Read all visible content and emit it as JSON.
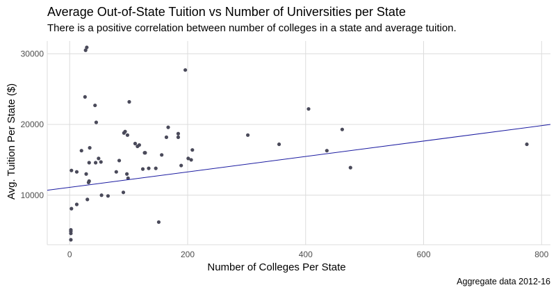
{
  "chart_data": {
    "type": "scatter",
    "title": "Average Out-of-State Tuition vs Number of Universities per State",
    "subtitle": "There is a positive correlation between number of colleges in a state and average tuition.",
    "caption": "Aggregate data 2012-16",
    "xlabel": "Number of Colleges Per State",
    "ylabel": "Avg. Tuition Per State ($)",
    "xlim": [
      -38,
      815
    ],
    "ylim": [
      3000,
      31800
    ],
    "xticks": [
      0,
      200,
      400,
      600,
      800
    ],
    "yticks": [
      10000,
      20000,
      30000
    ],
    "xtick_labels": [
      "0",
      "200",
      "400",
      "600",
      "800"
    ],
    "ytick_labels": [
      "10000",
      "20000",
      "30000"
    ],
    "grid": true,
    "point_color": "#4a4a5a",
    "trend_color": "#1a1aa0",
    "trend_line": {
      "x": [
        -38,
        815
      ],
      "y": [
        10700,
        20000
      ]
    },
    "points": [
      {
        "x": 2,
        "y": 3700
      },
      {
        "x": 2,
        "y": 4600
      },
      {
        "x": 2,
        "y": 4900
      },
      {
        "x": 2,
        "y": 5100
      },
      {
        "x": 3,
        "y": 8100
      },
      {
        "x": 3,
        "y": 13500
      },
      {
        "x": 12,
        "y": 8700
      },
      {
        "x": 12,
        "y": 13300
      },
      {
        "x": 20,
        "y": 16300
      },
      {
        "x": 26,
        "y": 23900
      },
      {
        "x": 27,
        "y": 30500
      },
      {
        "x": 29,
        "y": 30900
      },
      {
        "x": 28,
        "y": 13000
      },
      {
        "x": 30,
        "y": 9400
      },
      {
        "x": 32,
        "y": 11800
      },
      {
        "x": 33,
        "y": 12000
      },
      {
        "x": 33,
        "y": 14600
      },
      {
        "x": 34,
        "y": 16700
      },
      {
        "x": 43,
        "y": 22700
      },
      {
        "x": 44,
        "y": 14600
      },
      {
        "x": 45,
        "y": 20300
      },
      {
        "x": 49,
        "y": 15200
      },
      {
        "x": 53,
        "y": 14700
      },
      {
        "x": 54,
        "y": 10000
      },
      {
        "x": 65,
        "y": 9900
      },
      {
        "x": 79,
        "y": 13300
      },
      {
        "x": 84,
        "y": 14900
      },
      {
        "x": 91,
        "y": 10400
      },
      {
        "x": 92,
        "y": 18800
      },
      {
        "x": 94,
        "y": 19000
      },
      {
        "x": 97,
        "y": 13000
      },
      {
        "x": 98,
        "y": 18500
      },
      {
        "x": 99,
        "y": 12400
      },
      {
        "x": 101,
        "y": 23200
      },
      {
        "x": 111,
        "y": 17300
      },
      {
        "x": 115,
        "y": 16900
      },
      {
        "x": 118,
        "y": 17100
      },
      {
        "x": 124,
        "y": 13700
      },
      {
        "x": 127,
        "y": 16000
      },
      {
        "x": 128,
        "y": 16000
      },
      {
        "x": 134,
        "y": 13800
      },
      {
        "x": 146,
        "y": 13800
      },
      {
        "x": 151,
        "y": 6200
      },
      {
        "x": 156,
        "y": 15700
      },
      {
        "x": 164,
        "y": 18200
      },
      {
        "x": 167,
        "y": 19600
      },
      {
        "x": 184,
        "y": 18200
      },
      {
        "x": 184,
        "y": 18700
      },
      {
        "x": 189,
        "y": 14200
      },
      {
        "x": 196,
        "y": 27700
      },
      {
        "x": 201,
        "y": 15200
      },
      {
        "x": 206,
        "y": 15000
      },
      {
        "x": 208,
        "y": 16400
      },
      {
        "x": 302,
        "y": 18500
      },
      {
        "x": 355,
        "y": 17200
      },
      {
        "x": 405,
        "y": 22200
      },
      {
        "x": 436,
        "y": 16300
      },
      {
        "x": 462,
        "y": 19300
      },
      {
        "x": 476,
        "y": 13900
      },
      {
        "x": 775,
        "y": 17200
      }
    ]
  }
}
